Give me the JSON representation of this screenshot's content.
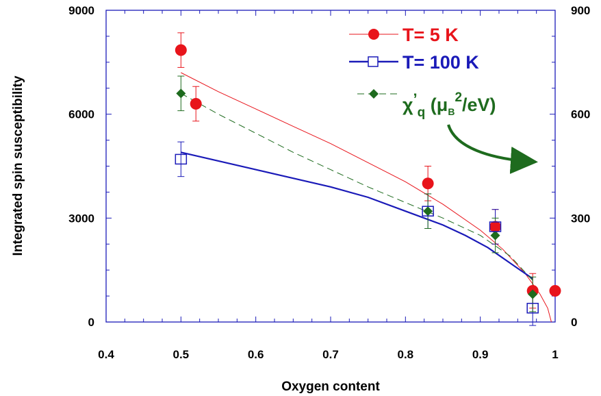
{
  "chart_data": {
    "type": "scatter",
    "xlabel": "Oxygen content",
    "ylabel": "Integrated spin susceptibility",
    "xlim": [
      0.4,
      1.0
    ],
    "ylim": [
      0,
      9000
    ],
    "y2lim": [
      0,
      900
    ],
    "x_ticks": [
      "0.4",
      "0.5",
      "0.6",
      "0.7",
      "0.8",
      "0.9",
      "1"
    ],
    "y_ticks": [
      "0",
      "3000",
      "6000",
      "9000"
    ],
    "y2_ticks": [
      "0",
      "300",
      "600",
      "900"
    ],
    "grid": false,
    "legend_position": "top-right",
    "series": [
      {
        "name": "T= 5 K",
        "color": "#e8141b",
        "marker": "filled-circle",
        "axis": "left",
        "points": [
          {
            "x": 0.5,
            "y": 7850,
            "err": 500
          },
          {
            "x": 0.52,
            "y": 6300,
            "err": 500
          },
          {
            "x": 0.83,
            "y": 4000,
            "err": 500
          },
          {
            "x": 0.92,
            "y": 2750,
            "err": 500
          },
          {
            "x": 0.97,
            "y": 900,
            "err": 500
          },
          {
            "x": 1.0,
            "y": 900,
            "err": 0
          }
        ],
        "fit": [
          {
            "x": 0.5,
            "y": 7200
          },
          {
            "x": 0.55,
            "y": 6650
          },
          {
            "x": 0.6,
            "y": 6150
          },
          {
            "x": 0.65,
            "y": 5650
          },
          {
            "x": 0.7,
            "y": 5150
          },
          {
            "x": 0.75,
            "y": 4600
          },
          {
            "x": 0.8,
            "y": 4050
          },
          {
            "x": 0.85,
            "y": 3400
          },
          {
            "x": 0.9,
            "y": 2650
          },
          {
            "x": 0.93,
            "y": 2100
          },
          {
            "x": 0.96,
            "y": 1400
          },
          {
            "x": 0.98,
            "y": 800
          },
          {
            "x": 0.99,
            "y": 400
          },
          {
            "x": 0.995,
            "y": 0
          }
        ]
      },
      {
        "name": "T= 100 K",
        "color": "#1a1ab8",
        "marker": "open-square",
        "axis": "left",
        "points": [
          {
            "x": 0.5,
            "y": 4700,
            "err": 500
          },
          {
            "x": 0.83,
            "y": 3200,
            "err": 500
          },
          {
            "x": 0.92,
            "y": 2750,
            "err": 500
          },
          {
            "x": 0.97,
            "y": 400,
            "err": 500
          }
        ],
        "fit": [
          {
            "x": 0.5,
            "y": 4900
          },
          {
            "x": 0.55,
            "y": 4650
          },
          {
            "x": 0.6,
            "y": 4400
          },
          {
            "x": 0.65,
            "y": 4150
          },
          {
            "x": 0.7,
            "y": 3900
          },
          {
            "x": 0.75,
            "y": 3600
          },
          {
            "x": 0.8,
            "y": 3200
          },
          {
            "x": 0.85,
            "y": 2800
          },
          {
            "x": 0.88,
            "y": 2500
          },
          {
            "x": 0.91,
            "y": 2150
          },
          {
            "x": 0.94,
            "y": 1700
          },
          {
            "x": 0.97,
            "y": 1250
          }
        ]
      },
      {
        "name_parts": {
          "chi": "χ",
          "prime": "’",
          "sub_q": "q",
          "open": " (",
          "mu": "μ",
          "sub_b": "B",
          "sup_2": "2",
          "unit": "/eV)"
        },
        "color": "#1e6b1e",
        "marker": "filled-diamond",
        "axis": "right",
        "points": [
          {
            "x": 0.5,
            "y": 660,
            "err": 50
          },
          {
            "x": 0.83,
            "y": 320,
            "err": 50
          },
          {
            "x": 0.92,
            "y": 250,
            "err": 50
          },
          {
            "x": 0.97,
            "y": 80,
            "err": 50
          }
        ],
        "fit": [
          {
            "x": 0.5,
            "y": 660
          },
          {
            "x": 0.55,
            "y": 600
          },
          {
            "x": 0.6,
            "y": 545
          },
          {
            "x": 0.65,
            "y": 490
          },
          {
            "x": 0.7,
            "y": 440
          },
          {
            "x": 0.75,
            "y": 390
          },
          {
            "x": 0.8,
            "y": 345
          },
          {
            "x": 0.85,
            "y": 300
          },
          {
            "x": 0.9,
            "y": 250
          },
          {
            "x": 0.94,
            "y": 190
          },
          {
            "x": 0.97,
            "y": 120
          }
        ]
      }
    ]
  }
}
